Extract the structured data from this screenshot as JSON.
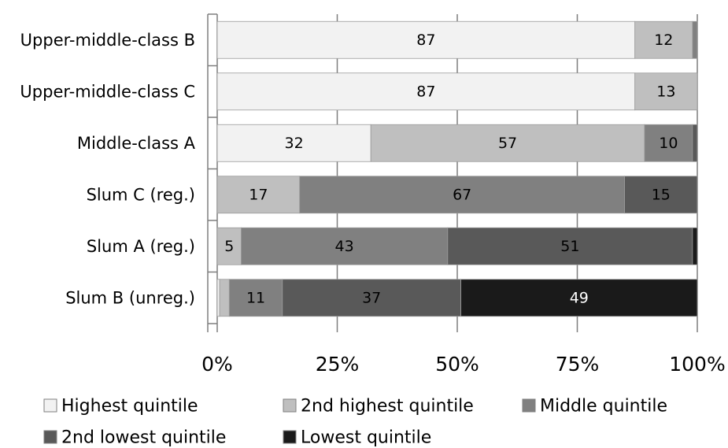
{
  "chart_data": {
    "type": "bar",
    "orientation": "horizontal",
    "stacked": true,
    "percent_stacked": true,
    "categories": [
      "Upper-middle-class B",
      "Upper-middle-class C",
      "Middle-class A",
      "Slum C (reg.)",
      "Slum A (reg.)",
      "Slum B (unreg.)"
    ],
    "series": [
      {
        "name": "Highest quintile",
        "color": "#f2f2f2",
        "values": [
          87,
          87,
          32,
          0,
          0,
          0.5
        ],
        "labels": [
          "87",
          "87",
          "32",
          "",
          "",
          ""
        ]
      },
      {
        "name": "2nd highest quintile",
        "color": "#bfbfbf",
        "values": [
          12,
          13,
          57,
          17,
          5,
          2
        ],
        "labels": [
          "12",
          "13",
          "57",
          "17",
          "5",
          ""
        ]
      },
      {
        "name": "Middle quintile",
        "color": "#808080",
        "values": [
          1,
          0,
          10,
          67,
          43,
          11
        ],
        "labels": [
          "",
          "",
          "10",
          "67",
          "43",
          "11"
        ]
      },
      {
        "name": "2nd lowest quintile",
        "color": "#595959",
        "values": [
          0,
          0,
          1,
          15,
          51,
          37
        ],
        "labels": [
          "",
          "",
          "",
          "15",
          "51",
          "37"
        ]
      },
      {
        "name": "Lowest quintile",
        "color": "#1a1a1a",
        "values": [
          0,
          0,
          0,
          0,
          1,
          49
        ],
        "labels": [
          "",
          "",
          "",
          "",
          "",
          "49"
        ]
      }
    ],
    "x_ticks": [
      "0%",
      "25%",
      "50%",
      "75%",
      "100%"
    ],
    "xlim": [
      0,
      100
    ],
    "grid": "vertical",
    "legend_position": "bottom",
    "title": "",
    "xlabel": "",
    "ylabel": ""
  }
}
